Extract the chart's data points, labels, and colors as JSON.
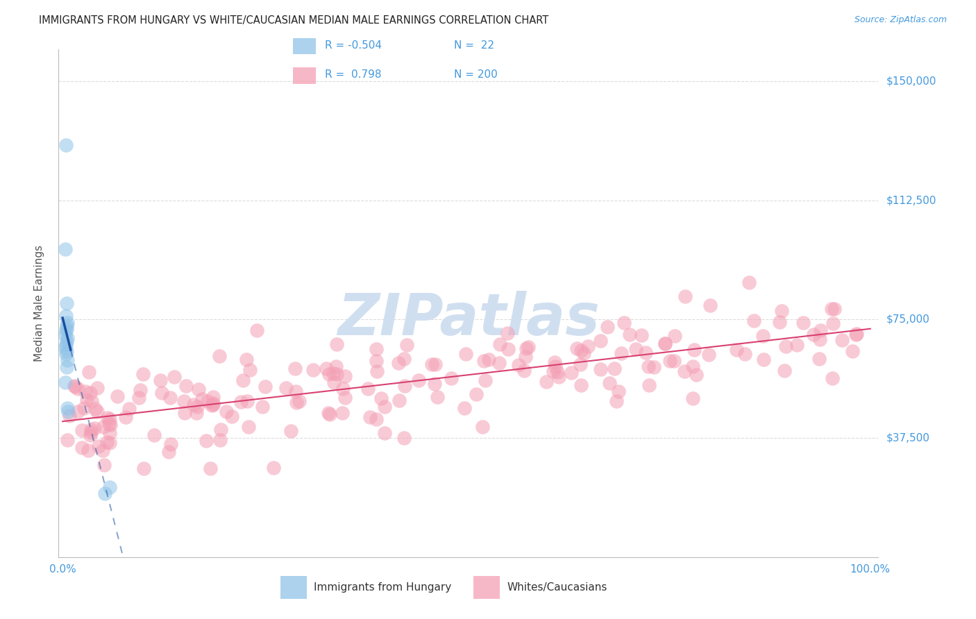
{
  "title": "IMMIGRANTS FROM HUNGARY VS WHITE/CAUCASIAN MEDIAN MALE EARNINGS CORRELATION CHART",
  "source": "Source: ZipAtlas.com",
  "ylabel": "Median Male Earnings",
  "ylim": [
    0,
    160000
  ],
  "xlim": [
    -0.005,
    1.01
  ],
  "ytick_vals": [
    37500,
    75000,
    112500,
    150000
  ],
  "ytick_labels": [
    "$37,500",
    "$75,000",
    "$112,500",
    "$150,000"
  ],
  "xtick_vals": [
    0.0,
    1.0
  ],
  "xtick_labels": [
    "0.0%",
    "100.0%"
  ],
  "legend_blue_R": "-0.504",
  "legend_blue_N": "22",
  "legend_pink_R": "0.798",
  "legend_pink_N": "200",
  "legend_label_blue": "Immigrants from Hungary",
  "legend_label_pink": "Whites/Caucasians",
  "blue_scatter_color": "#90c4e8",
  "pink_scatter_color": "#f4a0b5",
  "blue_line_color": "#1a4fa0",
  "pink_line_color": "#d84070",
  "watermark_color": "#d0dff0",
  "tick_color": "#4499dd",
  "title_color": "#222222",
  "axis_label_color": "#555555",
  "grid_color": "#cccccc",
  "bg_color": "#ffffff",
  "blue_x": [
    0.004,
    0.003,
    0.005,
    0.004,
    0.006,
    0.005,
    0.005,
    0.004,
    0.003,
    0.006,
    0.005,
    0.004,
    0.003,
    0.005,
    0.004,
    0.006,
    0.005,
    0.003,
    0.052,
    0.058,
    0.006,
    0.007
  ],
  "blue_y": [
    130000,
    97000,
    80000,
    76000,
    74000,
    73000,
    72000,
    71500,
    70000,
    69000,
    68000,
    67000,
    66000,
    65000,
    64000,
    62000,
    60000,
    55000,
    20000,
    22000,
    47000,
    46000
  ]
}
